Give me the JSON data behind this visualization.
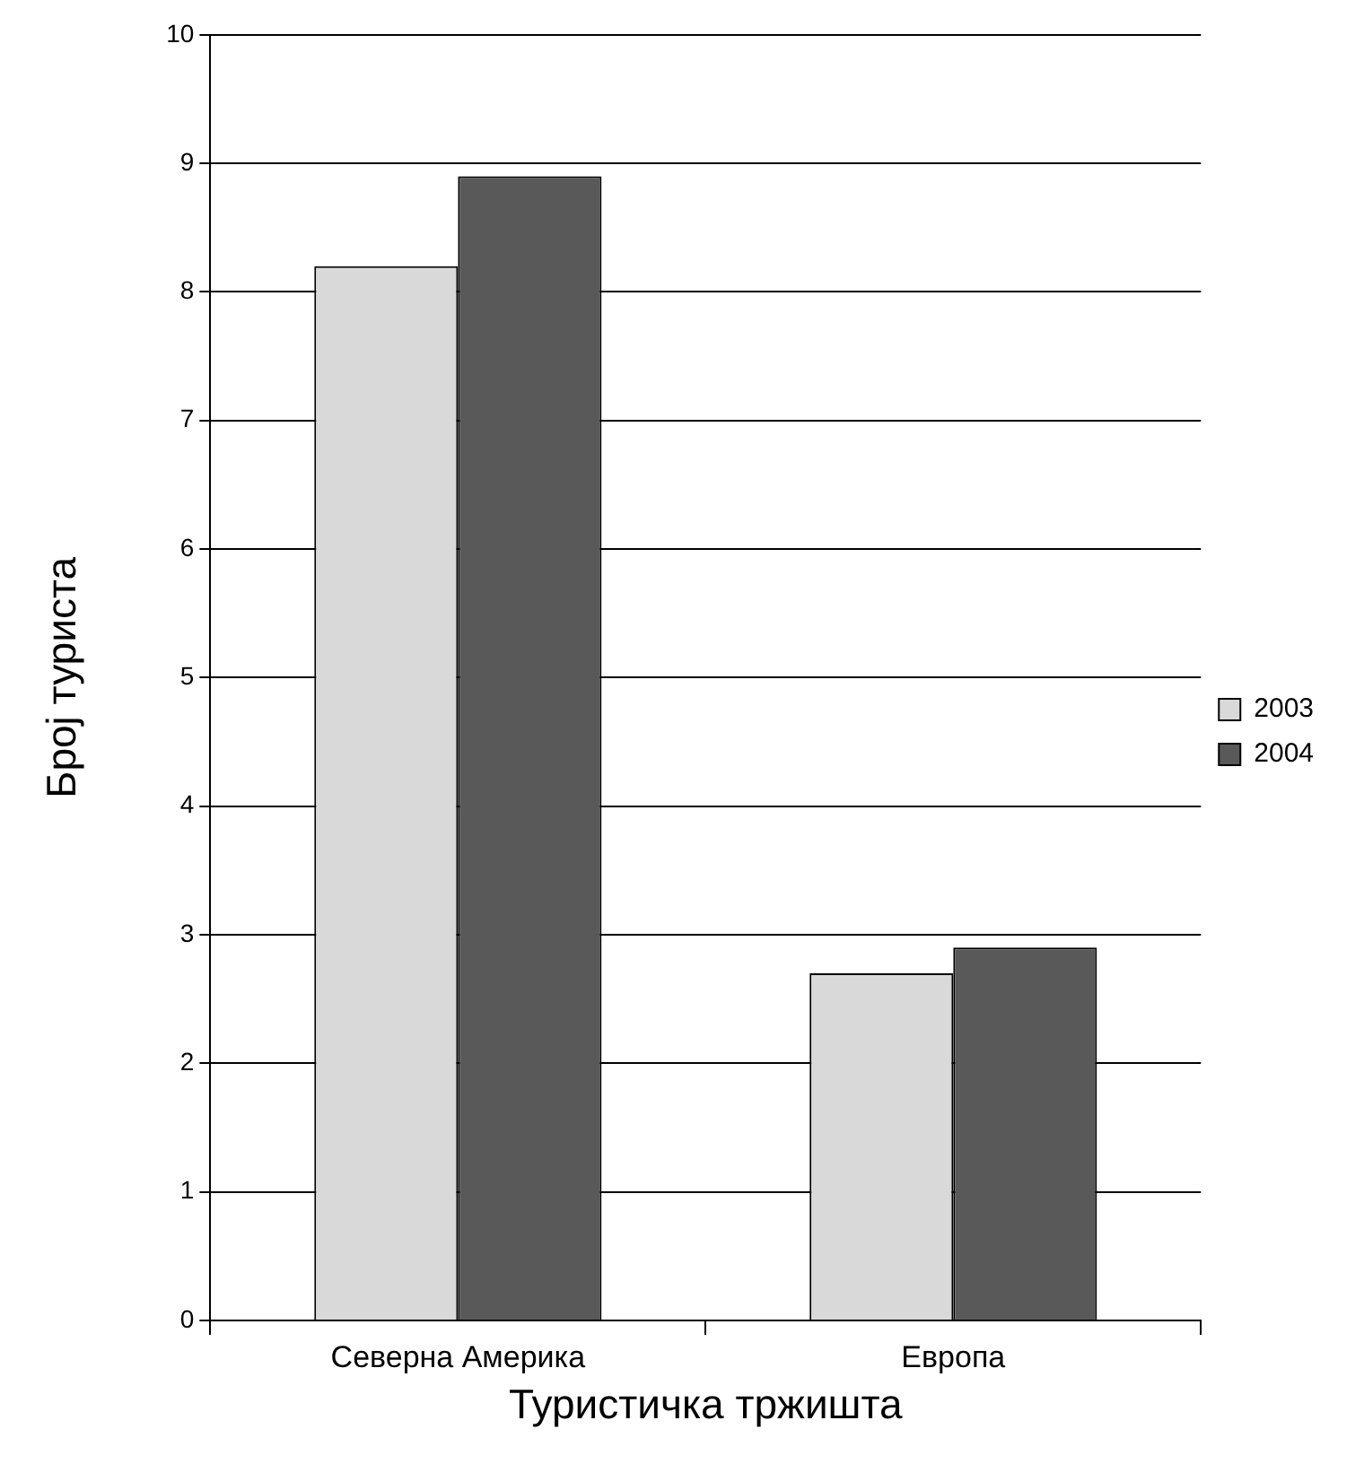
{
  "chart_data": {
    "type": "bar",
    "xlabel": "Туристичка тржишта",
    "ylabel": "Број туриста",
    "categories": [
      "Северна Америка",
      "Европа"
    ],
    "series": [
      {
        "name": "2003",
        "color": "#d9d9d9",
        "values": [
          8.2,
          2.7
        ]
      },
      {
        "name": "2004",
        "color": "#595959",
        "values": [
          8.9,
          2.9
        ]
      }
    ],
    "ylim": [
      0,
      10
    ],
    "yticks": [
      0,
      1,
      2,
      3,
      4,
      5,
      6,
      7,
      8,
      9,
      10
    ],
    "grid": "y",
    "legend": "right"
  }
}
